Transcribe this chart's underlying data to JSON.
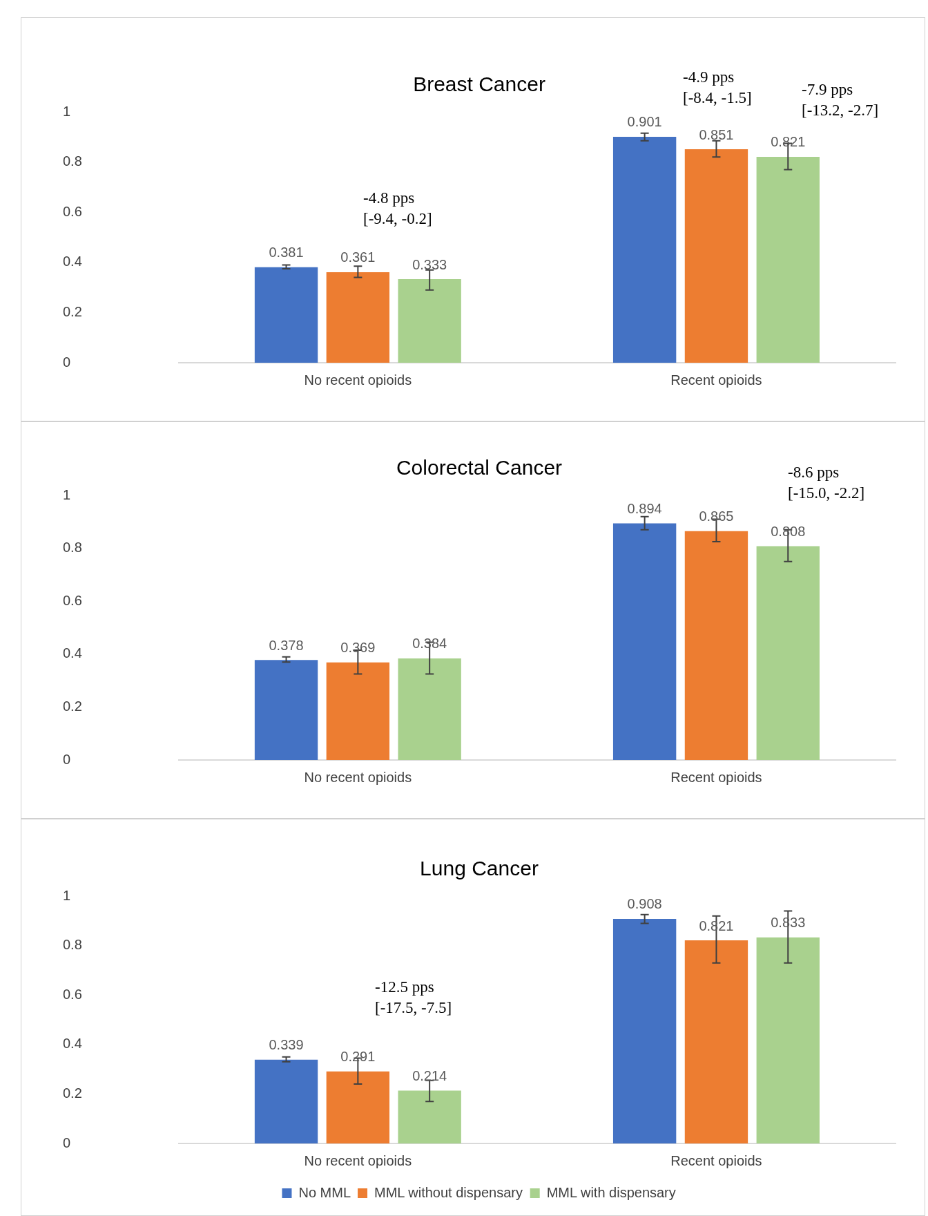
{
  "chart_data": [
    {
      "type": "bar",
      "title": "Breast Cancer",
      "categories": [
        "No recent opioids",
        "Recent opioids"
      ],
      "ylim": [
        0,
        1
      ],
      "yticks": [
        0,
        0.2,
        0.4,
        0.6,
        0.8,
        1
      ],
      "grid": false,
      "legend": false,
      "data_labels": true,
      "series": [
        {
          "color": "#4472c4",
          "values": [
            0.381,
            0.901
          ],
          "errors": [
            [
              0.375,
              0.39
            ],
            [
              0.885,
              0.915
            ]
          ]
        },
        {
          "color": "#ed7d31",
          "values": [
            0.361,
            0.851
          ],
          "errors": [
            [
              0.34,
              0.385
            ],
            [
              0.82,
              0.885
            ]
          ]
        },
        {
          "color": "#a9d18e",
          "values": [
            0.333,
            0.821
          ],
          "errors": [
            [
              0.29,
              0.37
            ],
            [
              0.77,
              0.875
            ]
          ]
        }
      ],
      "annotations": [
        "-4.8 pps\n[-9.4, -0.2]",
        "-4.9 pps\n[-8.4, -1.5]",
        "-7.9 pps\n[-13.2, -2.7]"
      ]
    },
    {
      "type": "bar",
      "title": "Colorectal Cancer",
      "categories": [
        "No recent opioids",
        "Recent opioids"
      ],
      "ylim": [
        0,
        1
      ],
      "yticks": [
        0,
        0.2,
        0.4,
        0.6,
        0.8,
        1
      ],
      "grid": false,
      "legend": false,
      "data_labels": true,
      "series": [
        {
          "color": "#4472c4",
          "values": [
            0.378,
            0.894
          ],
          "errors": [
            [
              0.37,
              0.39
            ],
            [
              0.87,
              0.92
            ]
          ]
        },
        {
          "color": "#ed7d31",
          "values": [
            0.369,
            0.865
          ],
          "errors": [
            [
              0.325,
              0.415
            ],
            [
              0.825,
              0.91
            ]
          ]
        },
        {
          "color": "#a9d18e",
          "values": [
            0.384,
            0.808
          ],
          "errors": [
            [
              0.325,
              0.445
            ],
            [
              0.75,
              0.87
            ]
          ]
        }
      ],
      "annotations": [
        "-8.6 pps\n[-15.0, -2.2]"
      ]
    },
    {
      "type": "bar",
      "title": "Lung Cancer",
      "categories": [
        "No recent opioids",
        "Recent opioids"
      ],
      "ylim": [
        0,
        1
      ],
      "yticks": [
        0,
        0.2,
        0.4,
        0.6,
        0.8,
        1
      ],
      "grid": false,
      "legend": "bottom",
      "data_labels": true,
      "series": [
        {
          "name": "No MML",
          "color": "#4472c4",
          "values": [
            0.339,
            0.908
          ],
          "errors": [
            [
              0.33,
              0.35
            ],
            [
              0.89,
              0.925
            ]
          ]
        },
        {
          "name": "MML without dispensary",
          "color": "#ed7d31",
          "values": [
            0.291,
            0.821
          ],
          "errors": [
            [
              0.24,
              0.345
            ],
            [
              0.73,
              0.92
            ]
          ]
        },
        {
          "name": "MML with dispensary",
          "color": "#a9d18e",
          "values": [
            0.214,
            0.833
          ],
          "errors": [
            [
              0.17,
              0.255
            ],
            [
              0.73,
              0.94
            ]
          ]
        }
      ],
      "annotations": [
        "-12.5 pps\n[-17.5, -7.5]"
      ]
    }
  ]
}
